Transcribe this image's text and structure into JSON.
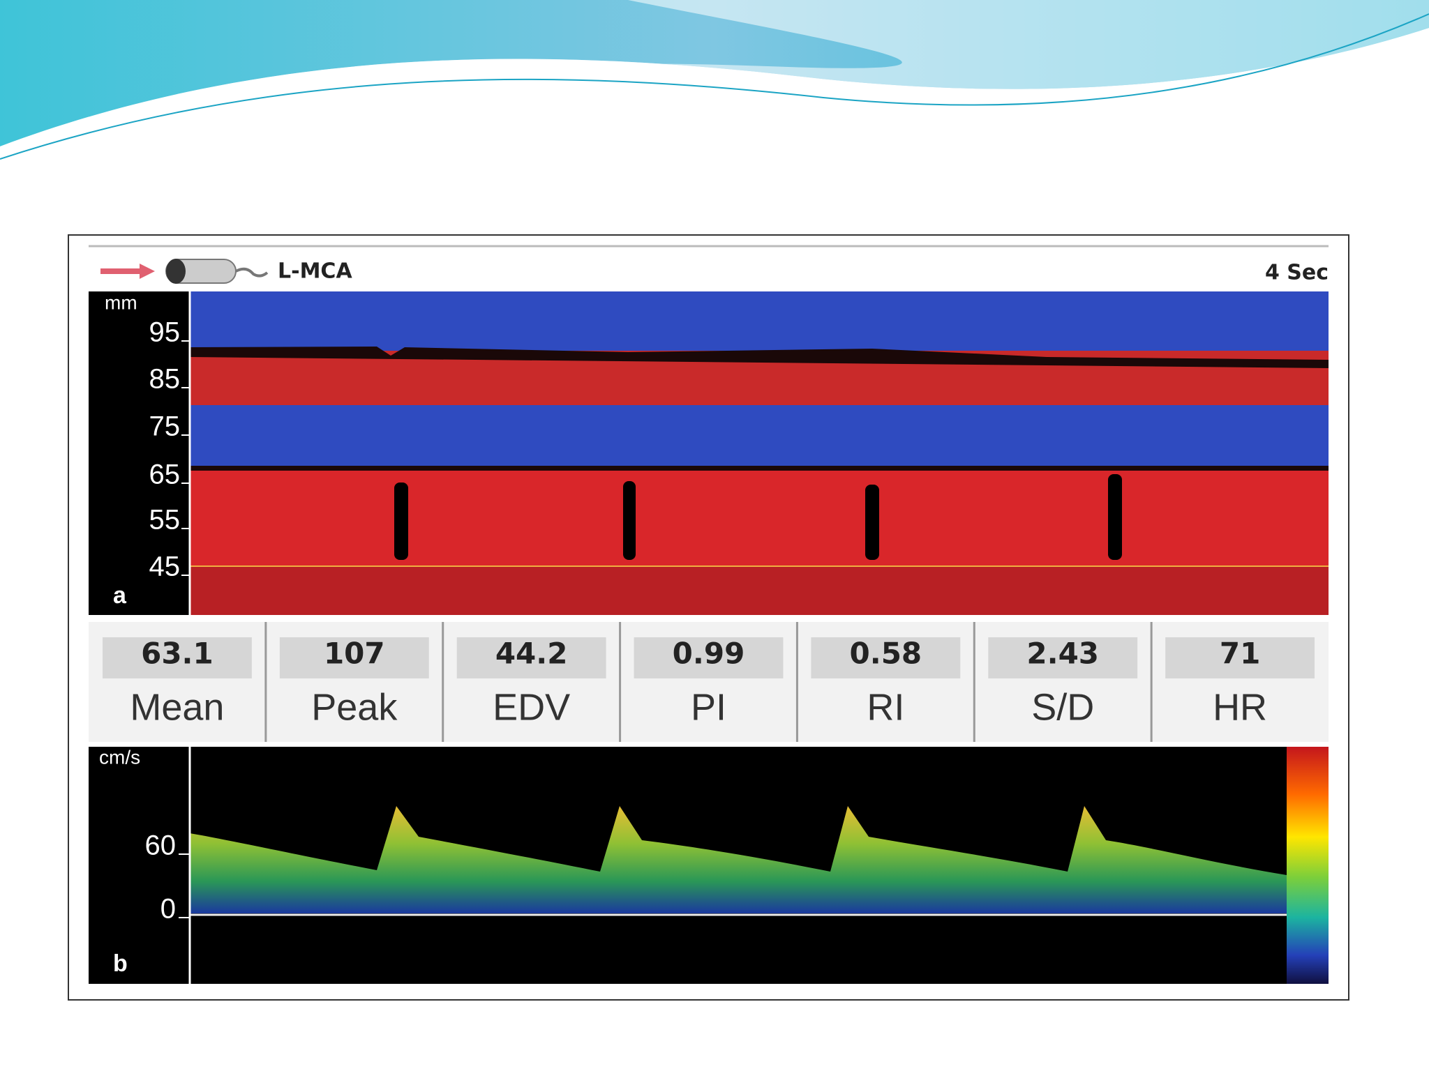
{
  "header": {
    "vessel": "L-MCA",
    "time_scale": "4 Sec"
  },
  "panel_a": {
    "label": "a",
    "unit": "mm",
    "ticks": [
      "95",
      "85",
      "75",
      "65",
      "55",
      "45"
    ]
  },
  "metrics": [
    {
      "value": "63.1",
      "label": "Mean"
    },
    {
      "value": "107",
      "label": "Peak"
    },
    {
      "value": "44.2",
      "label": "EDV"
    },
    {
      "value": "0.99",
      "label": "PI"
    },
    {
      "value": "0.58",
      "label": "RI"
    },
    {
      "value": "2.43",
      "label": "S/D"
    },
    {
      "value": "71",
      "label": "HR"
    }
  ],
  "panel_b": {
    "label": "b",
    "unit": "cm/s",
    "ticks": [
      "60",
      "0"
    ]
  }
}
